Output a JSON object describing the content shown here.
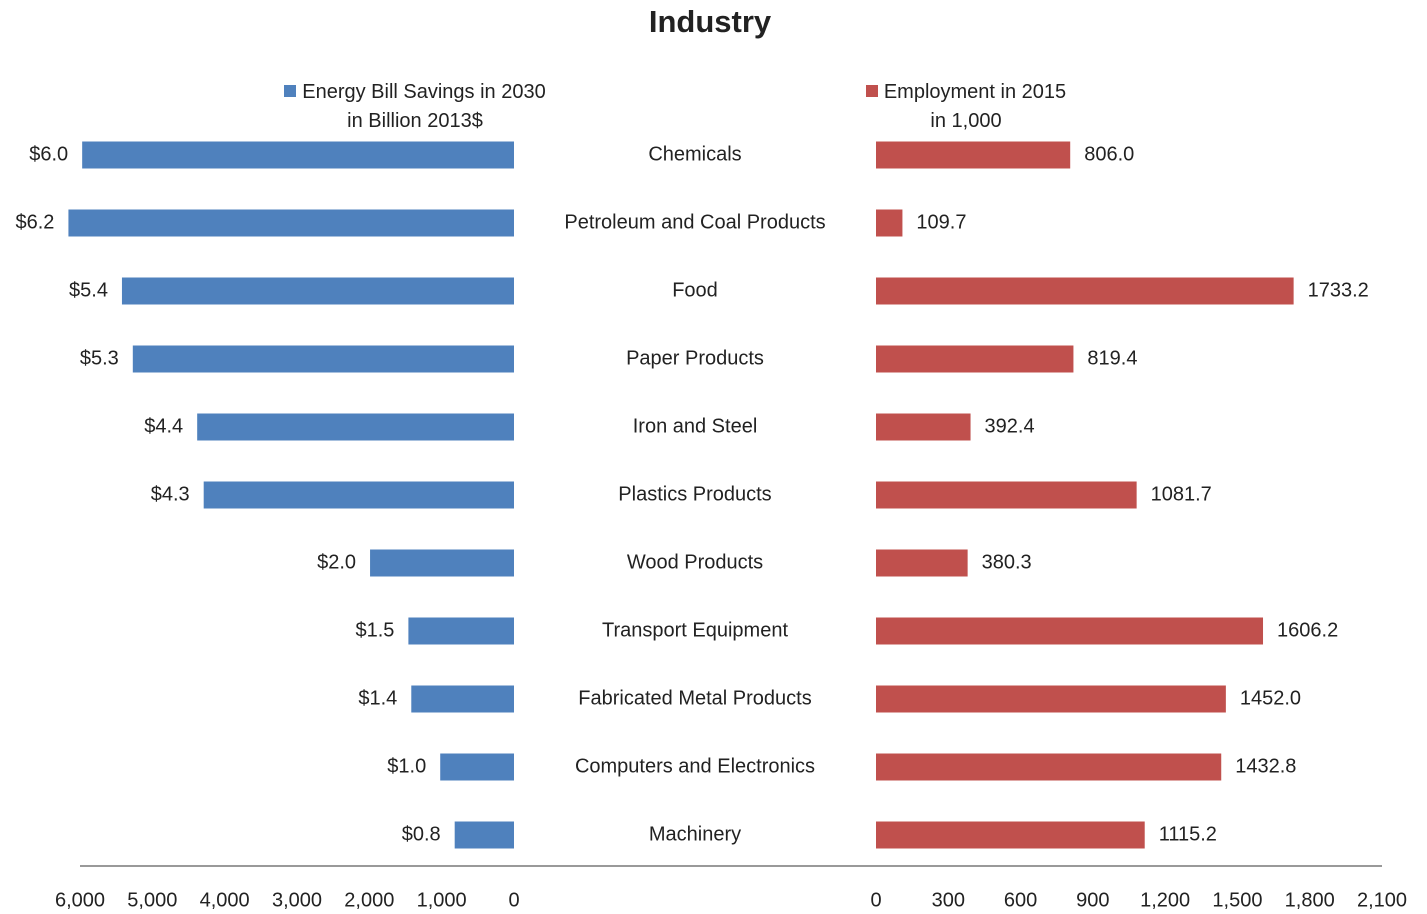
{
  "chart_data": {
    "type": "butterfly",
    "title": "Industry",
    "categories": [
      "Chemicals",
      "Petroleum and Coal Products",
      "Food",
      "Paper Products",
      "Iron and Steel",
      "Plastics Products",
      "Wood Products",
      "Transport Equipment",
      "Fabricated Metal Products",
      "Computers and Electronics",
      "Machinery"
    ],
    "series": [
      {
        "name": "Energy Bill Savings in 2030\nin Billion 2013$",
        "color": "#4f81bd",
        "side": "left",
        "values": [
          5970,
          6160,
          5420,
          5270,
          4380,
          4290,
          1990,
          1460,
          1420,
          1020,
          820
        ],
        "value_labels": [
          "$6.0",
          "$6.2",
          "$5.4",
          "$5.3",
          "$4.4",
          "$4.3",
          "$2.0",
          "$1.5",
          "$1.4",
          "$1.0",
          "$0.8"
        ],
        "xlim": [
          0,
          6000
        ],
        "xticks": [
          {
            "value": 6000,
            "label": "6,000"
          },
          {
            "value": 5000,
            "label": "5,000"
          },
          {
            "value": 4000,
            "label": "4,000"
          },
          {
            "value": 3000,
            "label": "3,000"
          },
          {
            "value": 2000,
            "label": "2,000"
          },
          {
            "value": 1000,
            "label": "1,000"
          },
          0
        ]
      },
      {
        "name": "Employment in 2015\nin 1,000",
        "color": "#c0504d",
        "side": "right",
        "values": [
          806.0,
          109.7,
          1733.2,
          819.4,
          392.4,
          1081.7,
          380.3,
          1606.2,
          1452.0,
          1432.8,
          1115.2
        ],
        "value_labels": [
          "806.0",
          "109.7",
          "1733.2",
          "819.4",
          "392.4",
          "1081.7",
          "380.3",
          "1606.2",
          "1452.0",
          "1432.8",
          "1115.2"
        ],
        "xlim": [
          0,
          2100
        ],
        "xticks": [
          0,
          300,
          600,
          900,
          {
            "value": 1200,
            "label": "1,200"
          },
          {
            "value": 1500,
            "label": "1,500"
          },
          {
            "value": 1800,
            "label": "1,800"
          },
          {
            "value": 2100,
            "label": "2,100"
          }
        ]
      }
    ]
  }
}
